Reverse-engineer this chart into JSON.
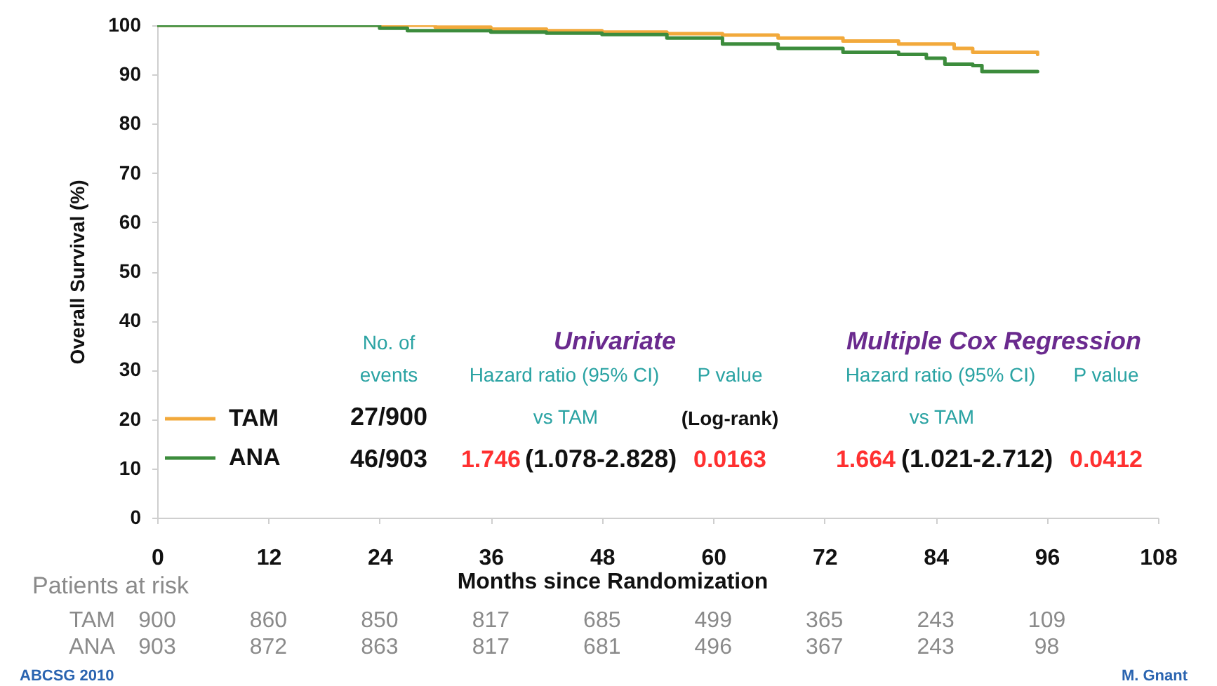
{
  "chart_data": {
    "type": "step",
    "xlabel": "Months since Randomization",
    "ylabel": "Overall Survival (%)",
    "xlim": [
      0,
      108
    ],
    "xticks": [
      0,
      12,
      24,
      36,
      48,
      60,
      72,
      84,
      96,
      108
    ],
    "ylim": [
      0,
      100
    ],
    "yticks": [
      0,
      10,
      20,
      30,
      40,
      50,
      60,
      70,
      80,
      90,
      100
    ],
    "series": [
      {
        "name": "TAM",
        "color": "#f2a93b",
        "x": [
          0,
          24,
          30,
          36,
          42,
          48,
          55,
          61,
          67,
          74,
          80,
          86,
          88,
          95
        ],
        "values": [
          100,
          100,
          99.6,
          99.2,
          98.9,
          98.6,
          98.3,
          98.0,
          97.4,
          96.8,
          96.2,
          95.3,
          94.5,
          94.1
        ]
      },
      {
        "name": "ANA",
        "color": "#3c8c3c",
        "x": [
          0,
          21,
          24,
          27,
          36,
          42,
          48,
          55,
          61,
          67,
          74,
          80,
          83,
          85,
          88,
          89,
          95
        ],
        "values": [
          100,
          100,
          99.4,
          98.9,
          98.6,
          98.4,
          98.1,
          97.4,
          96.2,
          95.3,
          94.5,
          94.1,
          93.3,
          92.1,
          91.8,
          90.6,
          90.6
        ]
      }
    ],
    "legend": "bottom left",
    "annotations": [
      "No. of",
      "events",
      "Univariate",
      "Multiple Cox Regression",
      "Hazard ratio (95% CI)",
      "P value",
      "Hazard ratio (95% CI)",
      "P value",
      "27/900",
      "vs TAM",
      "(Log-rank)",
      "vs TAM",
      "46/903",
      "1.746",
      "(1.078-2.828)",
      "0.0163",
      "1.664",
      "(1.021-2.712)",
      "0.0412",
      "Patients at risk",
      "TAM",
      "900",
      "860",
      "850",
      "817",
      "685",
      "499",
      "365",
      "243",
      "109",
      "ANA",
      "903",
      "872",
      "863",
      "817",
      "681",
      "496",
      "367",
      "243",
      "98",
      "ABCSG 2010",
      "M. Gnant"
    ]
  }
}
